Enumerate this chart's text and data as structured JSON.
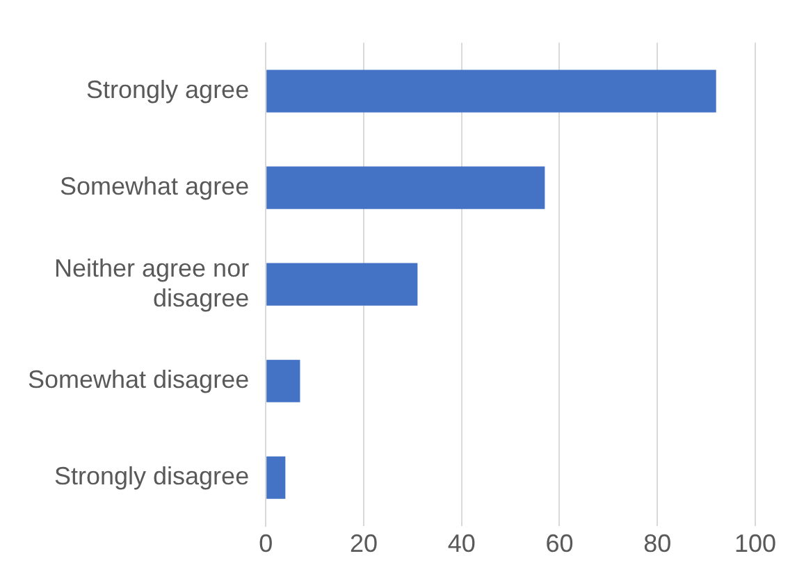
{
  "chart_data": {
    "type": "bar",
    "orientation": "horizontal",
    "categories": [
      "Strongly agree",
      "Somewhat agree",
      "Neither agree nor disagree",
      "Somewhat disagree",
      "Strongly disagree"
    ],
    "values": [
      92,
      57,
      31,
      7,
      4
    ],
    "color": "#4472c4",
    "xlim": [
      0,
      100
    ],
    "xticks": [
      0,
      20,
      40,
      60,
      80,
      100
    ],
    "grid": "x",
    "legend": false
  }
}
